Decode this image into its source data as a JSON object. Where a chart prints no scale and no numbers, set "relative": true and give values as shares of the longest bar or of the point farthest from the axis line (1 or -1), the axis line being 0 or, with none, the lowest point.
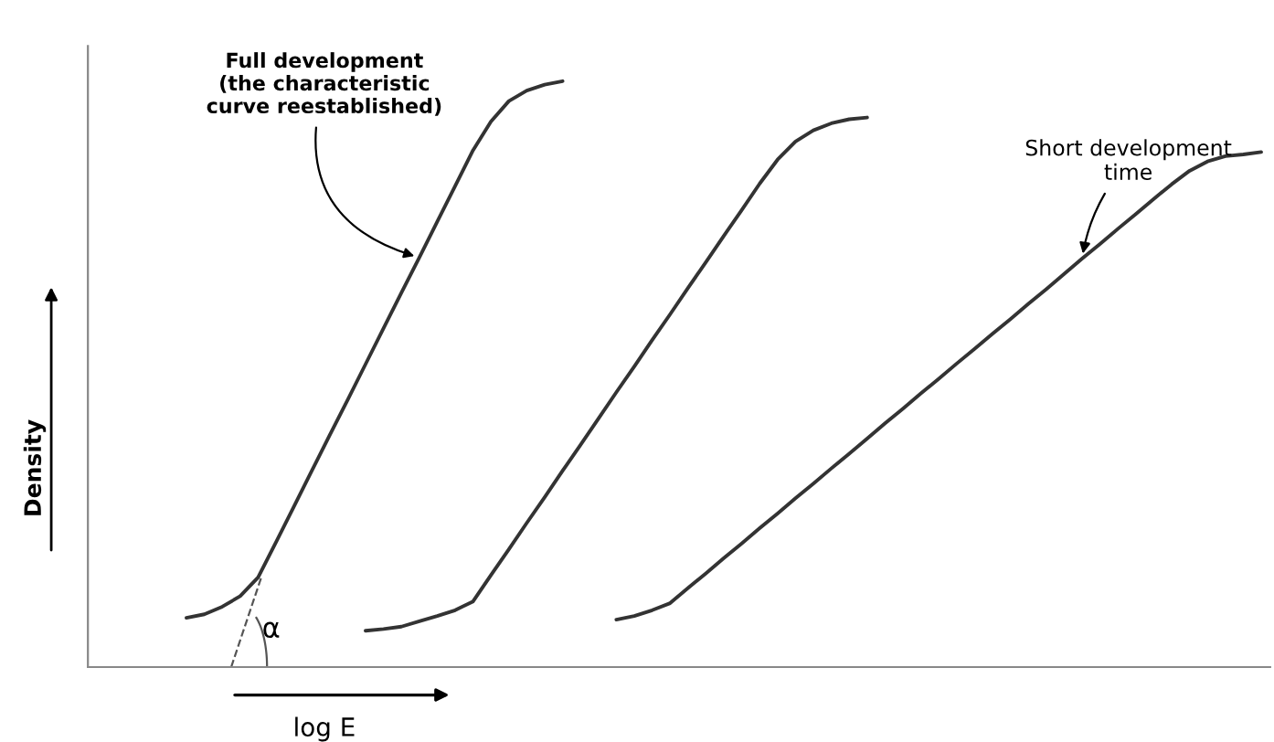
{
  "chart_data": {
    "type": "line",
    "relative": true,
    "xlabel": "log E",
    "ylabel": "Density",
    "color": "#333333",
    "grid": false,
    "annotations": [
      "Full development\n(the characteristic\ncurve reestablished)",
      "Short development\ntime",
      "α"
    ],
    "categories": [
      null,
      null,
      null,
      null,
      null,
      null,
      null,
      null,
      null,
      null,
      null,
      null,
      null,
      null,
      null,
      null,
      null,
      null,
      null,
      null,
      null,
      null,
      null,
      null,
      null,
      null,
      null,
      null,
      null,
      null,
      null,
      null,
      null,
      null,
      null,
      null,
      null,
      null,
      null,
      null,
      null,
      null,
      null,
      null,
      null,
      null,
      null,
      null,
      null,
      null,
      null,
      null,
      null,
      null,
      null,
      null,
      null,
      null,
      null,
      null,
      null,
      null,
      null,
      null,
      null,
      null
    ],
    "series": [
      {
        "values": [
          null,
          null,
          null,
          null,
          null,
          0.084,
          0.09,
          0.103,
          0.121,
          0.153,
          0.213,
          0.274,
          0.335,
          0.396,
          0.456,
          0.517,
          0.578,
          0.639,
          0.699,
          0.76,
          0.821,
          0.882,
          0.931,
          0.966,
          0.984,
          0.994,
          1.0,
          null,
          null,
          null,
          null,
          null,
          null,
          null,
          null,
          null,
          null,
          null,
          null,
          null,
          null,
          null,
          null,
          null,
          null,
          null,
          null,
          null,
          null,
          null,
          null,
          null,
          null,
          null,
          null,
          null,
          null,
          null,
          null,
          null,
          null,
          null,
          null,
          null,
          null,
          null
        ]
      },
      {
        "values": [
          null,
          null,
          null,
          null,
          null,
          null,
          null,
          null,
          null,
          null,
          null,
          null,
          null,
          null,
          null,
          0.062,
          0.065,
          0.069,
          0.078,
          0.087,
          0.097,
          0.112,
          0.157,
          0.201,
          0.246,
          0.29,
          0.335,
          0.379,
          0.424,
          0.469,
          0.513,
          0.558,
          0.602,
          0.647,
          0.691,
          0.736,
          0.78,
          0.825,
          0.866,
          0.897,
          0.916,
          0.928,
          0.935,
          0.938,
          null,
          null,
          null,
          null,
          null,
          null,
          null,
          null,
          null,
          null,
          null,
          null,
          null,
          null,
          null,
          null,
          null,
          null,
          null,
          null,
          null,
          null
        ]
      },
      {
        "values": [
          null,
          null,
          null,
          null,
          null,
          null,
          null,
          null,
          null,
          null,
          null,
          null,
          null,
          null,
          null,
          null,
          null,
          null,
          null,
          null,
          null,
          null,
          null,
          null,
          null,
          null,
          null,
          null,
          null,
          0.081,
          0.087,
          0.097,
          0.109,
          0.135,
          0.16,
          0.186,
          0.211,
          0.237,
          0.262,
          0.288,
          0.313,
          0.339,
          0.364,
          0.39,
          0.416,
          0.441,
          0.467,
          0.492,
          0.518,
          0.543,
          0.569,
          0.594,
          0.62,
          0.645,
          0.671,
          0.697,
          0.722,
          0.748,
          0.773,
          0.799,
          0.824,
          0.847,
          0.863,
          0.872,
          0.875,
          0.879
        ]
      }
    ]
  }
}
